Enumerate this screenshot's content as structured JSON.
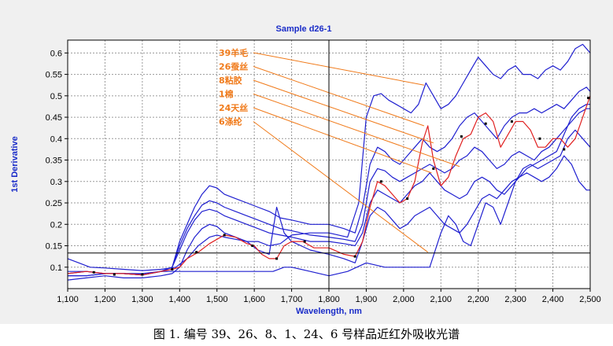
{
  "chart_data": {
    "type": "line",
    "title": "Sample d26-1",
    "xlabel": "Wavelength, nm",
    "ylabel": "1st Derivative",
    "xlim": [
      1100,
      2500
    ],
    "ylim": [
      0.05,
      0.63
    ],
    "x_ticks": [
      1100,
      1200,
      1300,
      1400,
      1500,
      1600,
      1700,
      1800,
      1900,
      2000,
      2100,
      2200,
      2300,
      2400,
      2500
    ],
    "x_tick_labels": [
      "1,100",
      "1,200",
      "1,300",
      "1,400",
      "1,500",
      "1,600",
      "1,700",
      "1,800",
      "1,900",
      "2,000",
      "2,100",
      "2,200",
      "2,300",
      "2,400",
      "2,500"
    ],
    "y_ticks": [
      0.1,
      0.15,
      0.2,
      0.25,
      0.3,
      0.35,
      0.4,
      0.45,
      0.5,
      0.55,
      0.6
    ],
    "y_tick_labels": [
      "0.1",
      "0.15",
      "0.2",
      "0.25",
      "0.3",
      "0.35",
      "0.4",
      "0.45",
      "0.5",
      "0.55",
      "0.6"
    ],
    "grid": true,
    "cursor": {
      "x": 1800,
      "y": 0.133
    },
    "annotations": [
      {
        "label": "39羊毛",
        "target": [
          2055,
          0.525
        ]
      },
      {
        "label": "26蚕丝",
        "target": [
          2055,
          0.43
        ]
      },
      {
        "label": "8粘胶",
        "target": [
          2080,
          0.39
        ]
      },
      {
        "label": "1棉",
        "target": [
          2150,
          0.335
        ]
      },
      {
        "label": "24天丝",
        "target": [
          2075,
          0.32
        ]
      },
      {
        "label": "6涤纶",
        "target": [
          2065,
          0.135
        ]
      }
    ],
    "series": [
      {
        "color": "#2020d0",
        "x": [
          1100,
          1130,
          1160,
          1200,
          1250,
          1300,
          1350,
          1390,
          1420,
          1450,
          1480,
          1500,
          1520,
          1550,
          1580,
          1610,
          1640,
          1670,
          1700,
          1750,
          1800,
          1850,
          1880,
          1900,
          1920,
          1940,
          1960,
          1980,
          2000,
          2020,
          2040,
          2060,
          2080,
          2100,
          2120,
          2140,
          2160,
          2180,
          2200,
          2220,
          2240,
          2260,
          2280,
          2300,
          2320,
          2340,
          2360,
          2380,
          2400,
          2420,
          2440,
          2460,
          2480,
          2500
        ],
        "y": [
          0.12,
          0.11,
          0.1,
          0.098,
          0.095,
          0.092,
          0.095,
          0.1,
          0.12,
          0.15,
          0.17,
          0.175,
          0.17,
          0.165,
          0.16,
          0.16,
          0.15,
          0.155,
          0.175,
          0.18,
          0.18,
          0.17,
          0.25,
          0.45,
          0.5,
          0.505,
          0.49,
          0.48,
          0.47,
          0.46,
          0.48,
          0.53,
          0.5,
          0.47,
          0.48,
          0.5,
          0.53,
          0.56,
          0.59,
          0.57,
          0.55,
          0.54,
          0.56,
          0.57,
          0.55,
          0.55,
          0.54,
          0.56,
          0.57,
          0.56,
          0.58,
          0.61,
          0.62,
          0.6
        ]
      },
      {
        "color": "#2020d0",
        "x": [
          1100,
          1150,
          1200,
          1250,
          1300,
          1350,
          1380,
          1400,
          1420,
          1440,
          1460,
          1480,
          1500,
          1520,
          1550,
          1580,
          1610,
          1640,
          1670,
          1700,
          1750,
          1800,
          1840,
          1870,
          1890,
          1910,
          1930,
          1950,
          1970,
          1990,
          2010,
          2030,
          2050,
          2070,
          2090,
          2110,
          2130,
          2150,
          2170,
          2190,
          2210,
          2230,
          2250,
          2270,
          2290,
          2310,
          2330,
          2350,
          2370,
          2390,
          2410,
          2430,
          2450,
          2470,
          2490,
          2500
        ],
        "y": [
          0.09,
          0.09,
          0.085,
          0.085,
          0.082,
          0.09,
          0.1,
          0.16,
          0.2,
          0.24,
          0.27,
          0.29,
          0.285,
          0.27,
          0.26,
          0.25,
          0.24,
          0.23,
          0.215,
          0.21,
          0.2,
          0.2,
          0.19,
          0.18,
          0.24,
          0.34,
          0.38,
          0.37,
          0.35,
          0.34,
          0.36,
          0.38,
          0.4,
          0.38,
          0.37,
          0.38,
          0.4,
          0.43,
          0.45,
          0.46,
          0.44,
          0.42,
          0.4,
          0.43,
          0.45,
          0.46,
          0.46,
          0.47,
          0.46,
          0.47,
          0.48,
          0.47,
          0.49,
          0.51,
          0.52,
          0.51
        ]
      },
      {
        "color": "#2020d0",
        "x": [
          1100,
          1150,
          1200,
          1250,
          1300,
          1350,
          1380,
          1400,
          1420,
          1440,
          1460,
          1480,
          1500,
          1520,
          1550,
          1580,
          1610,
          1640,
          1670,
          1700,
          1750,
          1800,
          1840,
          1870,
          1890,
          1910,
          1930,
          1950,
          1970,
          1990,
          2010,
          2030,
          2050,
          2070,
          2090,
          2110,
          2130,
          2150,
          2170,
          2190,
          2210,
          2230,
          2250,
          2270,
          2290,
          2310,
          2330,
          2350,
          2370,
          2390,
          2410,
          2430,
          2450,
          2470,
          2490,
          2500
        ],
        "y": [
          0.08,
          0.08,
          0.085,
          0.085,
          0.082,
          0.09,
          0.1,
          0.15,
          0.19,
          0.22,
          0.245,
          0.255,
          0.25,
          0.24,
          0.23,
          0.22,
          0.21,
          0.2,
          0.19,
          0.185,
          0.175,
          0.17,
          0.165,
          0.16,
          0.2,
          0.3,
          0.33,
          0.325,
          0.31,
          0.3,
          0.31,
          0.32,
          0.33,
          0.34,
          0.33,
          0.32,
          0.33,
          0.35,
          0.36,
          0.38,
          0.37,
          0.35,
          0.33,
          0.34,
          0.36,
          0.37,
          0.36,
          0.35,
          0.37,
          0.38,
          0.4,
          0.42,
          0.44,
          0.46,
          0.47,
          0.47
        ]
      },
      {
        "color": "#2020d0",
        "x": [
          1100,
          1150,
          1200,
          1250,
          1300,
          1350,
          1380,
          1400,
          1420,
          1440,
          1460,
          1480,
          1500,
          1520,
          1550,
          1580,
          1610,
          1640,
          1670,
          1700,
          1750,
          1800,
          1840,
          1870,
          1890,
          1910,
          1930,
          1950,
          1970,
          1990,
          2010,
          2030,
          2050,
          2070,
          2090,
          2110,
          2130,
          2150,
          2170,
          2190,
          2210,
          2230,
          2250,
          2270,
          2290,
          2310,
          2330,
          2350,
          2370,
          2390,
          2410,
          2430,
          2450,
          2470,
          2490,
          2500
        ],
        "y": [
          0.08,
          0.08,
          0.085,
          0.085,
          0.082,
          0.09,
          0.1,
          0.14,
          0.18,
          0.21,
          0.23,
          0.235,
          0.23,
          0.22,
          0.21,
          0.2,
          0.19,
          0.18,
          0.175,
          0.17,
          0.16,
          0.16,
          0.155,
          0.15,
          0.18,
          0.25,
          0.28,
          0.27,
          0.26,
          0.25,
          0.27,
          0.29,
          0.3,
          0.32,
          0.3,
          0.28,
          0.27,
          0.26,
          0.27,
          0.3,
          0.31,
          0.3,
          0.28,
          0.27,
          0.29,
          0.31,
          0.33,
          0.34,
          0.35,
          0.36,
          0.37,
          0.41,
          0.45,
          0.47,
          0.48,
          0.48
        ]
      },
      {
        "color": "#2020d0",
        "x": [
          1100,
          1150,
          1200,
          1250,
          1300,
          1350,
          1380,
          1400,
          1420,
          1440,
          1460,
          1480,
          1500,
          1520,
          1550,
          1580,
          1610,
          1640,
          1660,
          1680,
          1700,
          1750,
          1800,
          1840,
          1870,
          1890,
          1910,
          1930,
          1950,
          1970,
          1990,
          2010,
          2030,
          2050,
          2070,
          2090,
          2110,
          2130,
          2150,
          2170,
          2190,
          2210,
          2230,
          2250,
          2270,
          2290,
          2310,
          2330,
          2350,
          2370,
          2390,
          2410,
          2430,
          2450,
          2470,
          2490,
          2500
        ],
        "y": [
          0.07,
          0.075,
          0.08,
          0.075,
          0.075,
          0.08,
          0.085,
          0.1,
          0.14,
          0.17,
          0.19,
          0.2,
          0.195,
          0.18,
          0.17,
          0.16,
          0.14,
          0.13,
          0.24,
          0.18,
          0.16,
          0.14,
          0.13,
          0.12,
          0.11,
          0.16,
          0.22,
          0.24,
          0.23,
          0.21,
          0.19,
          0.2,
          0.22,
          0.23,
          0.24,
          0.22,
          0.2,
          0.19,
          0.18,
          0.2,
          0.23,
          0.26,
          0.27,
          0.26,
          0.28,
          0.3,
          0.31,
          0.32,
          0.31,
          0.3,
          0.31,
          0.33,
          0.36,
          0.34,
          0.3,
          0.28,
          0.28
        ]
      },
      {
        "color": "#2020d0",
        "x": [
          1100,
          1150,
          1200,
          1250,
          1300,
          1350,
          1400,
          1450,
          1500,
          1550,
          1600,
          1650,
          1680,
          1700,
          1750,
          1800,
          1850,
          1900,
          1950,
          2000,
          2050,
          2070,
          2100,
          2120,
          2140,
          2160,
          2180,
          2200,
          2220,
          2240,
          2260,
          2280,
          2300,
          2320,
          2340,
          2360,
          2380,
          2400,
          2420,
          2440,
          2460,
          2480,
          2500
        ],
        "y": [
          0.085,
          0.09,
          0.085,
          0.085,
          0.085,
          0.09,
          0.09,
          0.09,
          0.09,
          0.09,
          0.09,
          0.09,
          0.1,
          0.1,
          0.09,
          0.08,
          0.09,
          0.11,
          0.1,
          0.1,
          0.1,
          0.1,
          0.18,
          0.22,
          0.2,
          0.16,
          0.15,
          0.2,
          0.25,
          0.24,
          0.2,
          0.25,
          0.3,
          0.33,
          0.34,
          0.33,
          0.34,
          0.35,
          0.36,
          0.4,
          0.42,
          0.4,
          0.38
        ]
      },
      {
        "color": "#e02020",
        "x": [
          1100,
          1150,
          1200,
          1250,
          1300,
          1350,
          1380,
          1400,
          1420,
          1450,
          1480,
          1500,
          1520,
          1550,
          1580,
          1600,
          1620,
          1640,
          1660,
          1680,
          1700,
          1730,
          1760,
          1800,
          1840,
          1870,
          1890,
          1910,
          1930,
          1950,
          1970,
          1990,
          2010,
          2030,
          2050,
          2065,
          2080,
          2100,
          2120,
          2140,
          2160,
          2180,
          2200,
          2220,
          2240,
          2260,
          2280,
          2300,
          2320,
          2340,
          2360,
          2380,
          2400,
          2420,
          2440,
          2460,
          2480,
          2500
        ],
        "y": [
          0.085,
          0.09,
          0.085,
          0.085,
          0.082,
          0.09,
          0.095,
          0.1,
          0.12,
          0.135,
          0.155,
          0.165,
          0.175,
          0.17,
          0.155,
          0.15,
          0.13,
          0.12,
          0.12,
          0.15,
          0.16,
          0.16,
          0.145,
          0.145,
          0.13,
          0.125,
          0.16,
          0.24,
          0.3,
          0.29,
          0.27,
          0.25,
          0.26,
          0.3,
          0.39,
          0.43,
          0.35,
          0.29,
          0.31,
          0.36,
          0.4,
          0.41,
          0.45,
          0.46,
          0.44,
          0.38,
          0.41,
          0.44,
          0.44,
          0.42,
          0.38,
          0.38,
          0.4,
          0.4,
          0.38,
          0.4,
          0.45,
          0.5
        ]
      }
    ],
    "marker_points": [
      [
        1170,
        0.088
      ],
      [
        1225,
        0.083
      ],
      [
        1300,
        0.083
      ],
      [
        1380,
        0.095
      ],
      [
        1445,
        0.135
      ],
      [
        1520,
        0.175
      ],
      [
        1595,
        0.15
      ],
      [
        1660,
        0.12
      ],
      [
        1735,
        0.16
      ],
      [
        1870,
        0.125
      ],
      [
        1940,
        0.3
      ],
      [
        2010,
        0.26
      ],
      [
        2080,
        0.33
      ],
      [
        2155,
        0.405
      ],
      [
        2220,
        0.435
      ],
      [
        2290,
        0.44
      ],
      [
        2365,
        0.4
      ],
      [
        2430,
        0.375
      ],
      [
        2495,
        0.495
      ]
    ]
  },
  "caption": "图 1.   编号 39、26、8、1、24、6 号样品近红外吸收光谱"
}
